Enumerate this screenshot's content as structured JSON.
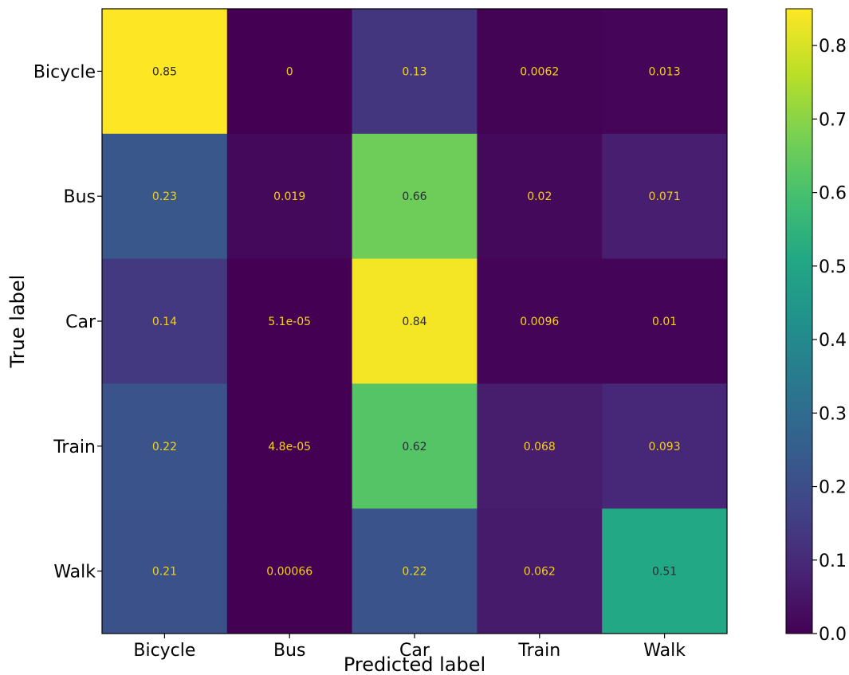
{
  "chart_data": {
    "type": "heatmap",
    "title": "",
    "xlabel": "Predicted label",
    "ylabel": "True label",
    "x_categories": [
      "Bicycle",
      "Bus",
      "Car",
      "Train",
      "Walk"
    ],
    "y_categories": [
      "Bicycle",
      "Bus",
      "Car",
      "Train",
      "Walk"
    ],
    "values": [
      [
        0.85,
        0,
        0.13,
        0.0062,
        0.013
      ],
      [
        0.23,
        0.019,
        0.66,
        0.02,
        0.071
      ],
      [
        0.14,
        5.1e-05,
        0.84,
        0.0096,
        0.01
      ],
      [
        0.22,
        4.8e-05,
        0.62,
        0.068,
        0.093
      ],
      [
        0.21,
        0.00066,
        0.22,
        0.062,
        0.51
      ]
    ],
    "cell_labels": [
      [
        "0.85",
        "0",
        "0.13",
        "0.0062",
        "0.013"
      ],
      [
        "0.23",
        "0.019",
        "0.66",
        "0.02",
        "0.071"
      ],
      [
        "0.14",
        "5.1e-05",
        "0.84",
        "0.0096",
        "0.01"
      ],
      [
        "0.22",
        "4.8e-05",
        "0.62",
        "0.068",
        "0.093"
      ],
      [
        "0.21",
        "0.00066",
        "0.22",
        "0.062",
        "0.51"
      ]
    ],
    "colormap": "viridis",
    "color_range": [
      0.0,
      0.85
    ],
    "colorbar_ticks": [
      "0.0",
      "0.1",
      "0.2",
      "0.3",
      "0.4",
      "0.5",
      "0.6",
      "0.7",
      "0.8"
    ],
    "text_color_light": "#f5d20f",
    "text_color_dark": "#2a2a3a",
    "grid": false,
    "legend": "colorbar-right"
  }
}
